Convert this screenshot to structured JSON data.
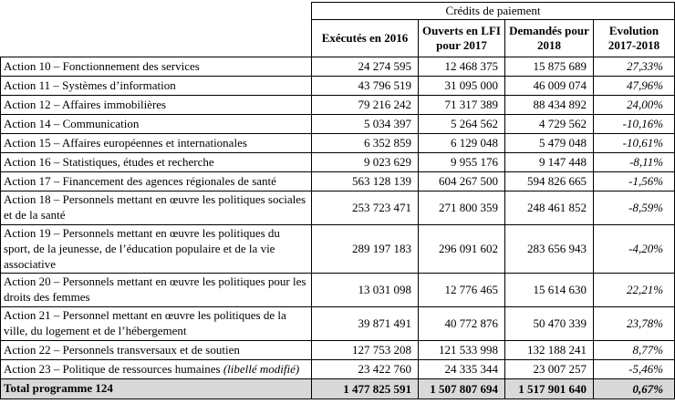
{
  "table": {
    "title": "Crédits de paiement",
    "columns": [
      "Exécutés en 2016",
      "Ouverts en LFI pour 2017",
      "Demandés pour 2018",
      "Evolution 2017-2018"
    ],
    "rows": [
      {
        "label": "Action 10 – Fonctionnement des services",
        "values": [
          "24 274 595",
          "12 468 375",
          "15 875 689",
          "27,33%"
        ]
      },
      {
        "label": "Action 11 – Systèmes d’information",
        "values": [
          "43 796 519",
          "31 095 000",
          "46 009 074",
          "47,96%"
        ]
      },
      {
        "label": "Action 12 – Affaires immobilières",
        "values": [
          "79 216 242",
          "71 317 389",
          "88 434 892",
          "24,00%"
        ]
      },
      {
        "label": "Action 14 – Communication",
        "values": [
          "5 034 397",
          "5 264 562",
          "4 729 562",
          "-10,16%"
        ]
      },
      {
        "label": "Action 15 – Affaires européennes et internationales",
        "values": [
          "6 352 859",
          "6 129 048",
          "5 479 048",
          "-10,61%"
        ]
      },
      {
        "label": "Action 16 – Statistiques, études et recherche",
        "values": [
          "9 023 629",
          "9 955 176",
          "9 147 448",
          "-8,11%"
        ]
      },
      {
        "label": "Action 17 – Financement des agences régionales de santé",
        "values": [
          "563 128 139",
          "604 267 500",
          "594 826 665",
          "-1,56%"
        ]
      },
      {
        "label": "Action 18 – Personnels mettant en œuvre les politiques sociales et de la santé",
        "values": [
          "253 723 471",
          "271 800 359",
          "248 461 852",
          "-8,59%"
        ]
      },
      {
        "label": "Action 19 – Personnels mettant en œuvre les politiques du sport, de la jeunesse, de l’éducation populaire et de la vie associative",
        "values": [
          "289 197 183",
          "296 091 602",
          "283 656 943",
          "-4,20%"
        ]
      },
      {
        "label": "Action 20 – Personnels mettant en œuvre les politiques pour les droits des femmes",
        "values": [
          "13 031 098",
          "12 776 465",
          "15 614 630",
          "22,21%"
        ]
      },
      {
        "label": "Action 21 – Personnel mettant en œuvre les politiques de la ville, du logement et de l’hébergement",
        "values": [
          "39 871 491",
          "40 772 876",
          "50 470 339",
          "23,78%"
        ]
      },
      {
        "label": "Action 22 – Personnels transversaux et de soutien",
        "values": [
          "127 753 208",
          "121 533 998",
          "132 188 241",
          "8,77%"
        ]
      },
      {
        "label": "Action 23 – Politique de ressources humaines",
        "note": "(libellé modifié)",
        "values": [
          "23 422 760",
          "24 335 344",
          "23 007 257",
          "-5,46%"
        ]
      }
    ],
    "total": {
      "label": "Total programme 124",
      "values": [
        "1 477 825 591",
        "1 507 807 694",
        "1 517 901 640",
        "0,67%"
      ]
    }
  }
}
